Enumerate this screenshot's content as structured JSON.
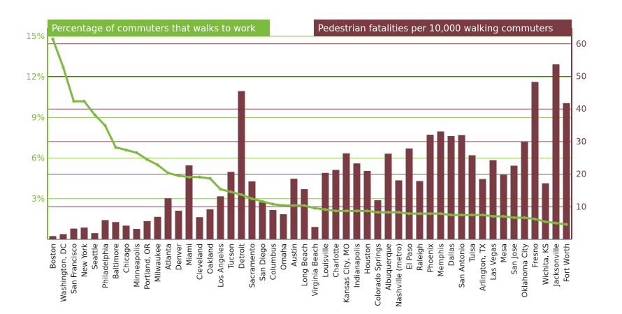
{
  "chart_data": {
    "type": "bar",
    "categories": [
      "Boston",
      "Washington, DC",
      "San Francisco",
      "New York",
      "Seattle",
      "Philadelphia",
      "Baltimore",
      "Chicago",
      "Minneapolis",
      "Portland, OR",
      "Milwaukee",
      "Atlanta",
      "Denver",
      "Miami",
      "Cleveland",
      "Oakland",
      "Los Angeles",
      "Tucson",
      "Detroit",
      "Sacramento",
      "San Diego",
      "Columbus",
      "Omaha",
      "Austin",
      "Long Beach",
      "Virginia Beach",
      "Louisville",
      "Charlotte",
      "Kansas City, MO",
      "Indianapolis",
      "Houston",
      "Colorado Springs",
      "Albuquerque",
      "Nashville (metro)",
      "El Paso",
      "Raleigh",
      "Phoenix",
      "Memphis",
      "Dallas",
      "San Antonio",
      "Tulsa",
      "Arlington, TX",
      "Las Vegas",
      "Mesa",
      "San Jose",
      "Oklahoma City",
      "Fresno",
      "Wichita, KS",
      "Jacksonville",
      "Fort Worth"
    ],
    "series": [
      {
        "name": "Pedestrian fatalities per 10,000 walking commuters",
        "axis": "right",
        "values": [
          1.0,
          1.6,
          3.3,
          3.6,
          1.9,
          5.9,
          5.3,
          4.2,
          3.2,
          5.6,
          6.9,
          12.6,
          8.8,
          22.7,
          6.8,
          9.2,
          13.2,
          20.7,
          45.5,
          17.8,
          11.4,
          9.0,
          7.7,
          18.6,
          15.4,
          3.8,
          20.4,
          21.3,
          26.4,
          23.3,
          21.0,
          12.0,
          26.3,
          18.1,
          27.9,
          17.9,
          32.1,
          33.1,
          31.7,
          32.0,
          25.8,
          18.5,
          24.3,
          19.8,
          22.6,
          29.9,
          48.3,
          17.2,
          53.7,
          41.8
        ]
      },
      {
        "name": "Percentage of commuters that walks to work",
        "axis": "left",
        "values": [
          14.8,
          12.7,
          10.2,
          10.2,
          9.2,
          8.4,
          6.8,
          6.6,
          6.4,
          5.9,
          5.5,
          4.9,
          4.7,
          4.6,
          4.6,
          4.5,
          3.7,
          3.5,
          3.3,
          3.0,
          2.8,
          2.6,
          2.5,
          2.5,
          2.5,
          2.3,
          2.2,
          2.1,
          2.1,
          2.1,
          2.1,
          2.0,
          2.0,
          2.0,
          1.9,
          1.9,
          1.9,
          1.9,
          1.8,
          1.8,
          1.8,
          1.8,
          1.7,
          1.7,
          1.6,
          1.6,
          1.5,
          1.3,
          1.2,
          1.1
        ]
      }
    ],
    "left_axis": {
      "min": 0,
      "max": 15,
      "ticks": [
        "3%",
        "6%",
        "9%",
        "12%",
        "15%"
      ],
      "tick_values": [
        3,
        6,
        9,
        12,
        15
      ]
    },
    "right_axis": {
      "min": 0,
      "max": 62,
      "ticks": [
        "10",
        "20",
        "30",
        "40",
        "50",
        "60"
      ],
      "tick_values": [
        10,
        20,
        30,
        40,
        50,
        60
      ]
    },
    "grid": true,
    "legend_placement": "top",
    "colors": {
      "line": "#7dbb3e",
      "bar": "#7a3b42",
      "left_axis": "#7dbb3e",
      "right_axis": "#7a3b42",
      "right_grid": "#8a4a52",
      "left_grid": "#8fc655"
    }
  }
}
